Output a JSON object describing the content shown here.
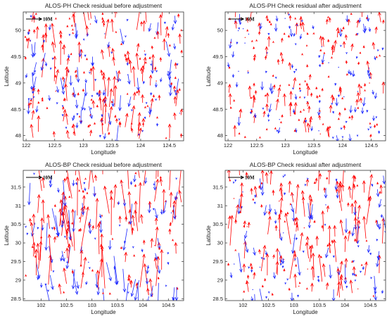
{
  "colors": {
    "up": "#ff0000",
    "down": "#1f2bff",
    "frame": "#333333",
    "scale": "#000000"
  },
  "chart_data": [
    {
      "type": "quiver",
      "title": "ALOS-PH Check residual before adjustment",
      "xlabel": "Longitude",
      "ylabel": "Latitude",
      "xlim": [
        121.95,
        124.75
      ],
      "ylim": [
        47.9,
        50.35
      ],
      "xticks": [
        122,
        122.5,
        123,
        123.5,
        124,
        124.5
      ],
      "xticklabels": [
        "122",
        "122.5",
        "123",
        "123.5",
        "124",
        "124.5"
      ],
      "yticks": [
        48,
        48.5,
        49,
        49.5,
        50
      ],
      "yticklabels": [
        "48",
        "48.5",
        "49",
        "49.5",
        "50"
      ],
      "scale_label": "10M",
      "residual_scale": 0.9,
      "grid": false,
      "seed": 11,
      "n_points": 320
    },
    {
      "type": "quiver",
      "title": "ALOS-PH Check residual after adjustment",
      "xlabel": "Longitude",
      "ylabel": "Latitude",
      "xlim": [
        121.95,
        124.75
      ],
      "ylim": [
        47.9,
        50.35
      ],
      "xticks": [
        122,
        122.5,
        123,
        123.5,
        124,
        124.5
      ],
      "xticklabels": [
        "122",
        "122.5",
        "123",
        "123.5",
        "124",
        "124.5"
      ],
      "yticks": [
        48,
        48.5,
        49,
        49.5,
        50
      ],
      "yticklabels": [
        "48",
        "48.5",
        "49",
        "49.5",
        "50"
      ],
      "scale_label": "10M",
      "residual_scale": 0.45,
      "grid": false,
      "seed": 23,
      "n_points": 300
    },
    {
      "type": "quiver",
      "title": "ALOS-BP Check residual before adjustment",
      "xlabel": "Longitude",
      "ylabel": "Latitude",
      "xlim": [
        101.65,
        104.8
      ],
      "ylim": [
        28.45,
        31.95
      ],
      "xticks": [
        102,
        102.5,
        103,
        103.5,
        104,
        104.5
      ],
      "xticklabels": [
        "102",
        "102.5",
        "103",
        "103.5",
        "104",
        "104.5"
      ],
      "yticks": [
        28.5,
        29,
        29.5,
        30,
        30.5,
        31,
        31.5
      ],
      "yticklabels": [
        "28.5",
        "29",
        "29.5",
        "30",
        "30.5",
        "31",
        "31.5"
      ],
      "scale_label": "10M",
      "residual_scale": 1.6,
      "grid": false,
      "seed": 37,
      "n_points": 260
    },
    {
      "type": "quiver",
      "title": "ALOS-BP Check residual after adjustment",
      "xlabel": "Longitude",
      "ylabel": "Latitude",
      "xlim": [
        101.65,
        104.8
      ],
      "ylim": [
        28.45,
        31.95
      ],
      "xticks": [
        102,
        102.5,
        103,
        103.5,
        104,
        104.5
      ],
      "xticklabels": [
        "102",
        "102.5",
        "103",
        "103.5",
        "104",
        "104.5"
      ],
      "yticks": [
        28.5,
        29,
        29.5,
        30,
        30.5,
        31,
        31.5
      ],
      "yticklabels": [
        "28.5",
        "29",
        "29.5",
        "30",
        "30.5",
        "31",
        "31.5"
      ],
      "scale_label": "10M",
      "residual_scale": 1.1,
      "grid": false,
      "seed": 53,
      "n_points": 280
    }
  ]
}
